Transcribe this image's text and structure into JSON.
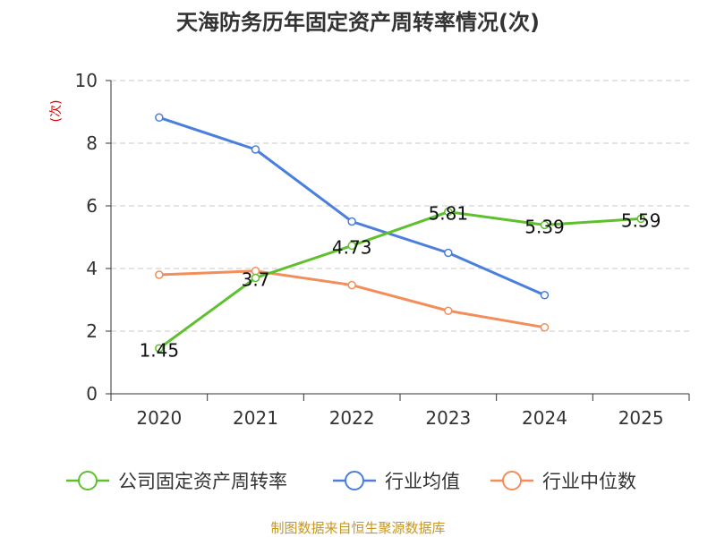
{
  "chart_data": {
    "type": "line",
    "title": "天海防务历年固定资产周转率情况(次)",
    "ylabel": "(次)",
    "xlabel": "",
    "ylim": [
      0,
      10
    ],
    "y_ticks": [
      "0",
      "2",
      "4",
      "6",
      "8",
      "10"
    ],
    "categories": [
      "2020",
      "2021",
      "2022",
      "2023",
      "2024",
      "2025"
    ],
    "grid": true,
    "legend_position": "bottom",
    "series": [
      {
        "name": "公司固定资产周转率",
        "color": "#5ec02e",
        "values": [
          1.45,
          3.7,
          4.73,
          5.81,
          5.39,
          5.59
        ],
        "labels": [
          "1.45",
          "3.7",
          "4.73",
          "5.81",
          "5.39",
          "5.59"
        ]
      },
      {
        "name": "行业均值",
        "color": "#4a7fdc",
        "values": [
          8.82,
          7.8,
          5.5,
          4.5,
          3.15,
          null
        ]
      },
      {
        "name": "行业中位数",
        "color": "#f38d5a",
        "values": [
          3.8,
          3.92,
          3.47,
          2.65,
          2.12,
          null
        ]
      }
    ],
    "source": "制图数据来自恒生聚源数据库"
  }
}
